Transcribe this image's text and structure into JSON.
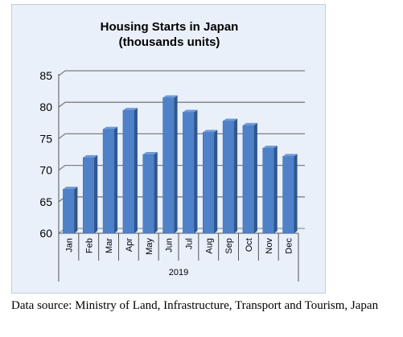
{
  "chart_data": {
    "type": "bar",
    "title_lines": [
      "Housing Starts in Japan",
      "(thousands units)"
    ],
    "categories": [
      "Jan",
      "Feb",
      "Mar",
      "Apr",
      "May",
      "Jun",
      "Jul",
      "Aug",
      "Sep",
      "Oct",
      "Nov",
      "Dec"
    ],
    "x_group_label": "2019",
    "series": [
      {
        "values": [
          67.0,
          72.0,
          76.5,
          79.5,
          72.5,
          81.5,
          79.2,
          76.0,
          77.8,
          77.1,
          73.5,
          72.2
        ]
      }
    ],
    "ylim": [
      60,
      85
    ],
    "yticks": [
      60,
      65,
      70,
      75,
      80,
      85
    ],
    "grid": true,
    "legend": "none",
    "colors": {
      "bar_front": "#4f81c9",
      "bar_side": "#2f5690",
      "bar_top": "#6f9ad8",
      "grid": "#7f7f7f",
      "frame_bg": "#e9f0fa"
    }
  },
  "source_text": "Data source: Ministry of Land, Infrastructure, Transport and Tourism, Japan"
}
